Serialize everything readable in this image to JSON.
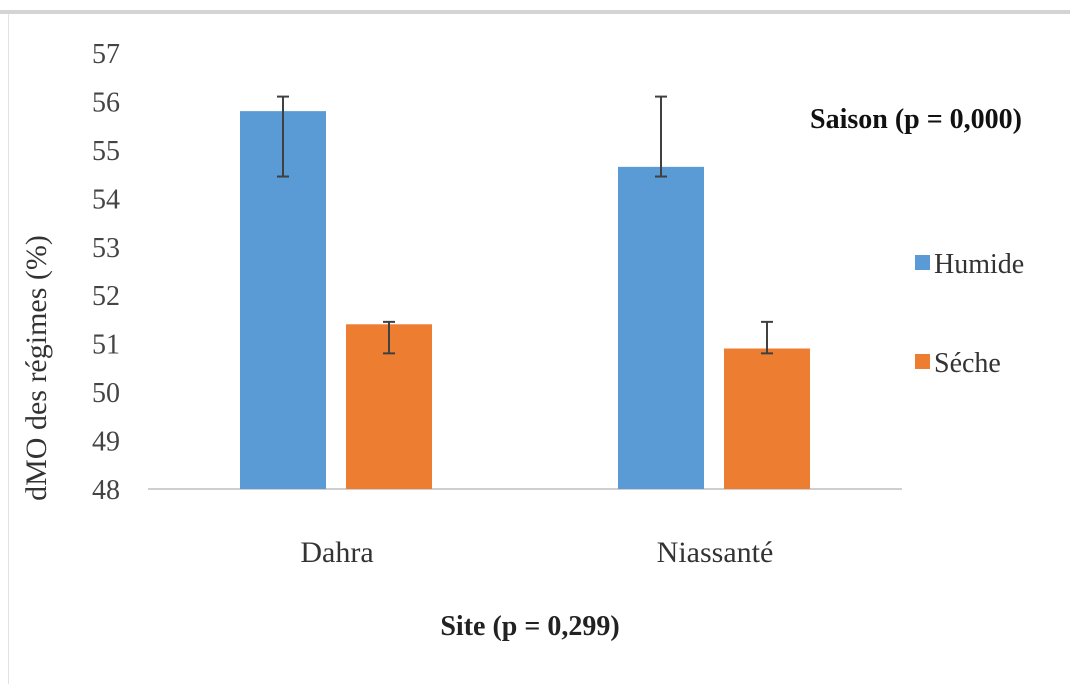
{
  "chart_data": {
    "type": "bar",
    "categories": [
      "Dahra",
      "Niassanté"
    ],
    "series": [
      {
        "name": "Humide",
        "color": "#5b9bd5",
        "values": [
          55.8,
          54.65
        ],
        "errors": [
          [
            54.45,
            56.1
          ],
          [
            54.45,
            56.1
          ]
        ]
      },
      {
        "name": "Séche",
        "color": "#ed7d31",
        "values": [
          51.4,
          50.9
        ],
        "errors": [
          [
            50.8,
            51.45
          ],
          [
            50.8,
            51.45
          ]
        ]
      }
    ],
    "ylim": [
      48,
      57
    ],
    "yticks": [
      "57",
      "56",
      "55",
      "54",
      "53",
      "52",
      "51",
      "50",
      "49",
      "48"
    ],
    "ylabel": "dMO des régimes (%)",
    "xlabel": "Site (p = 0,299)",
    "annotation": "Saison (p = 0,000)",
    "legend_position": "right",
    "grid": false
  }
}
